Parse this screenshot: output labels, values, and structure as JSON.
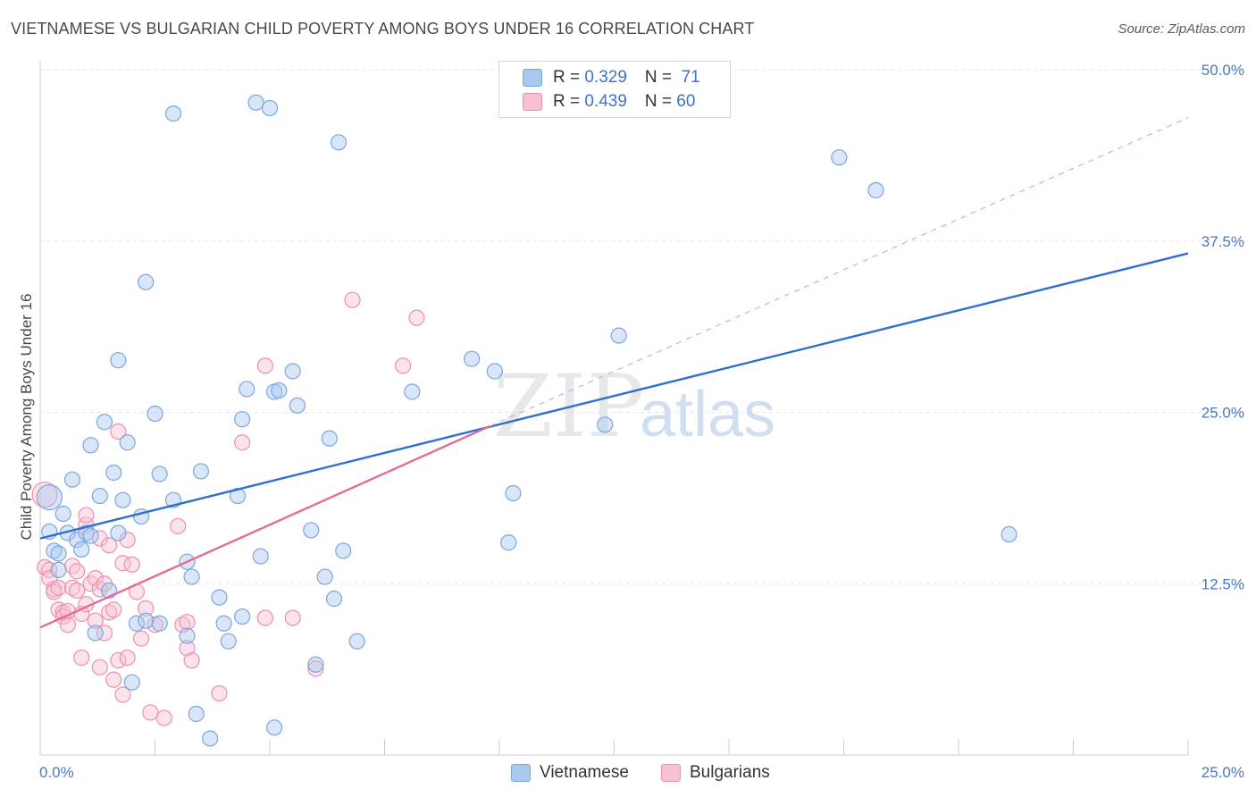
{
  "title": "VIETNAMESE VS BULGARIAN CHILD POVERTY AMONG BOYS UNDER 16 CORRELATION CHART",
  "source": "Source: ZipAtlas.com",
  "watermark": {
    "zip": "ZIP",
    "atlas": "atlas"
  },
  "legend": {
    "rows": [
      {
        "r_label": "R = ",
        "r_value": "0.329",
        "n_label": "N = ",
        "n_value": " 71",
        "color": "#a9c8f0",
        "border": "#7aa6e0"
      },
      {
        "r_label": "R = ",
        "r_value": "0.439",
        "n_label": "N = ",
        "n_value": "60",
        "color": "#f8c0d2",
        "border": "#ee8fae"
      }
    ]
  },
  "bottom_legend": [
    {
      "label": "Vietnamese",
      "color": "#a9c8f0",
      "border": "#7aa6e0"
    },
    {
      "label": "Bulgarians",
      "color": "#f8c0d2",
      "border": "#ee8fae"
    }
  ],
  "chart_data": {
    "type": "scatter",
    "title": "VIETNAMESE VS BULGARIAN CHILD POVERTY AMONG BOYS UNDER 16 CORRELATION CHART",
    "xlabel": "",
    "ylabel": "Child Poverty Among Boys Under 16",
    "xlim": [
      0,
      25
    ],
    "ylim": [
      0,
      50
    ],
    "x_tick_labels": [
      "0.0%",
      "25.0%"
    ],
    "y_ticks": [
      12.5,
      25.0,
      37.5,
      50.0
    ],
    "y_tick_labels": [
      "12.5%",
      "25.0%",
      "37.5%",
      "50.0%"
    ],
    "grid": true,
    "series": [
      {
        "name": "Vietnamese",
        "color": "#7aa6e0",
        "fill": "#a9c8f0",
        "points": [
          [
            0.2,
            18.8
          ],
          [
            0.2,
            16.3
          ],
          [
            0.3,
            14.9
          ],
          [
            0.4,
            14.7
          ],
          [
            0.4,
            13.5
          ],
          [
            0.5,
            17.6
          ],
          [
            0.6,
            16.2
          ],
          [
            0.7,
            20.1
          ],
          [
            0.8,
            15.7
          ],
          [
            0.9,
            15.0
          ],
          [
            1.0,
            16.2
          ],
          [
            1.1,
            22.6
          ],
          [
            1.1,
            16.0
          ],
          [
            1.2,
            8.9
          ],
          [
            1.3,
            18.9
          ],
          [
            1.4,
            24.3
          ],
          [
            1.5,
            12.0
          ],
          [
            1.6,
            20.6
          ],
          [
            1.7,
            16.2
          ],
          [
            1.7,
            28.8
          ],
          [
            1.8,
            18.6
          ],
          [
            1.9,
            22.8
          ],
          [
            2.0,
            5.3
          ],
          [
            2.1,
            9.6
          ],
          [
            2.2,
            17.4
          ],
          [
            2.3,
            34.5
          ],
          [
            2.3,
            9.8
          ],
          [
            2.5,
            24.9
          ],
          [
            2.6,
            20.5
          ],
          [
            2.6,
            9.6
          ],
          [
            2.9,
            46.8
          ],
          [
            2.9,
            18.6
          ],
          [
            3.2,
            14.1
          ],
          [
            3.2,
            8.7
          ],
          [
            3.3,
            13.0
          ],
          [
            3.4,
            3.0
          ],
          [
            3.5,
            20.7
          ],
          [
            3.7,
            1.2
          ],
          [
            3.9,
            11.5
          ],
          [
            4.0,
            9.6
          ],
          [
            4.1,
            8.3
          ],
          [
            4.3,
            18.9
          ],
          [
            4.4,
            24.5
          ],
          [
            4.4,
            10.1
          ],
          [
            4.5,
            26.7
          ],
          [
            4.7,
            47.6
          ],
          [
            4.8,
            14.5
          ],
          [
            5.0,
            47.2
          ],
          [
            5.1,
            26.5
          ],
          [
            5.1,
            2.0
          ],
          [
            5.2,
            26.6
          ],
          [
            5.5,
            28.0
          ],
          [
            5.6,
            25.5
          ],
          [
            5.9,
            16.4
          ],
          [
            6.0,
            6.6
          ],
          [
            6.2,
            13.0
          ],
          [
            6.3,
            23.1
          ],
          [
            6.4,
            11.4
          ],
          [
            6.5,
            44.7
          ],
          [
            6.6,
            14.9
          ],
          [
            6.9,
            8.3
          ],
          [
            8.1,
            26.5
          ],
          [
            9.4,
            28.9
          ],
          [
            9.9,
            28.0
          ],
          [
            10.2,
            15.5
          ],
          [
            10.3,
            19.1
          ],
          [
            12.3,
            24.1
          ],
          [
            12.6,
            30.6
          ],
          [
            17.4,
            43.6
          ],
          [
            18.2,
            41.2
          ],
          [
            21.1,
            16.1
          ]
        ]
      },
      {
        "name": "Bulgarians",
        "color": "#ee8fae",
        "fill": "#f8c0d2",
        "points": [
          [
            0.1,
            19.0
          ],
          [
            0.1,
            13.7
          ],
          [
            0.2,
            13.5
          ],
          [
            0.2,
            12.9
          ],
          [
            0.3,
            12.1
          ],
          [
            0.3,
            11.9
          ],
          [
            0.4,
            12.2
          ],
          [
            0.4,
            10.6
          ],
          [
            0.5,
            10.4
          ],
          [
            0.5,
            10.1
          ],
          [
            0.6,
            9.5
          ],
          [
            0.6,
            10.5
          ],
          [
            0.7,
            13.8
          ],
          [
            0.7,
            12.2
          ],
          [
            0.8,
            13.4
          ],
          [
            0.8,
            12.0
          ],
          [
            0.9,
            10.3
          ],
          [
            0.9,
            7.1
          ],
          [
            1.0,
            11.0
          ],
          [
            1.0,
            16.8
          ],
          [
            1.0,
            17.5
          ],
          [
            1.1,
            12.5
          ],
          [
            1.2,
            12.9
          ],
          [
            1.2,
            9.8
          ],
          [
            1.3,
            12.1
          ],
          [
            1.3,
            15.8
          ],
          [
            1.3,
            6.4
          ],
          [
            1.4,
            12.5
          ],
          [
            1.4,
            8.9
          ],
          [
            1.5,
            15.3
          ],
          [
            1.5,
            10.4
          ],
          [
            1.6,
            10.6
          ],
          [
            1.6,
            5.5
          ],
          [
            1.7,
            23.6
          ],
          [
            1.7,
            6.9
          ],
          [
            1.8,
            14.0
          ],
          [
            1.8,
            4.4
          ],
          [
            1.9,
            15.7
          ],
          [
            1.9,
            7.1
          ],
          [
            2.0,
            13.9
          ],
          [
            2.1,
            11.9
          ],
          [
            2.2,
            8.5
          ],
          [
            2.3,
            10.7
          ],
          [
            2.4,
            3.1
          ],
          [
            2.5,
            9.5
          ],
          [
            2.7,
            2.7
          ],
          [
            3.0,
            16.7
          ],
          [
            3.1,
            9.5
          ],
          [
            3.2,
            9.7
          ],
          [
            3.2,
            7.8
          ],
          [
            3.3,
            6.9
          ],
          [
            3.9,
            4.5
          ],
          [
            4.4,
            22.8
          ],
          [
            4.9,
            28.4
          ],
          [
            4.9,
            10.0
          ],
          [
            5.5,
            10.0
          ],
          [
            6.0,
            6.3
          ],
          [
            6.8,
            33.2
          ],
          [
            7.9,
            28.4
          ],
          [
            8.2,
            31.9
          ]
        ]
      }
    ],
    "trendlines": [
      {
        "series": "Vietnamese",
        "from": [
          0,
          15.8
        ],
        "to": [
          25,
          36.6
        ],
        "style": "solid",
        "color": "#2f6fce"
      },
      {
        "series": "Bulgarians",
        "from": [
          0,
          9.3
        ],
        "to": [
          9.8,
          24.0
        ],
        "style": "solid",
        "color": "#e36d98"
      },
      {
        "series": "Bulgarians",
        "from": [
          9.8,
          24.0
        ],
        "to": [
          25,
          46.5
        ],
        "style": "dashed",
        "color": "#e8a4bb"
      }
    ]
  }
}
